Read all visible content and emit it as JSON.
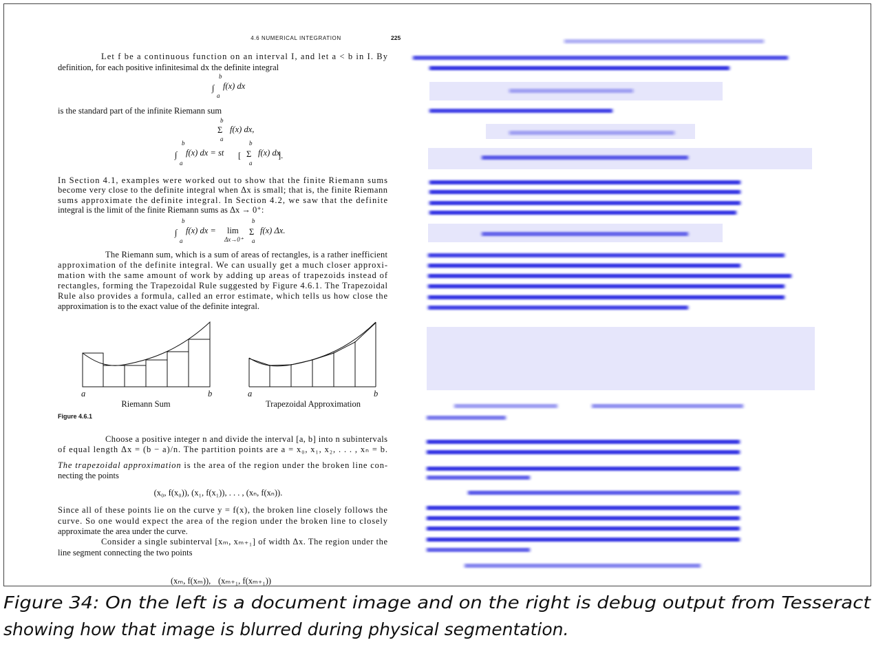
{
  "header": {
    "running_title": "4.6 NUMERICAL INTEGRATION",
    "page_number": "225"
  },
  "paragraphs": [
    {
      "lines": [
        "Let f be a continuous function on an interval I, and let a < b in I. By",
        "definition, for each positive infinitesimal dx the definite integral"
      ]
    },
    {
      "lines": [
        "is the standard part of the infinite Riemann sum"
      ]
    },
    {
      "lines": [
        "In Section 4.1, examples were worked out to show that the finite Riemann sums",
        "become very close to the definite integral when Δx is small; that is, the finite Riemann",
        "sums approximate the definite integral. In Section 4.2, we saw that the definite",
        "integral is the limit of the finite Riemann sums as Δx → 0⁺:"
      ]
    },
    {
      "lines": [
        "The Riemann sum, which is a sum of areas of rectangles, is a rather inefficient",
        "approximation of the definite integral. We can usually get a much closer approxi-",
        "mation with the same amount of work by adding up areas of trapezoids instead of",
        "rectangles, forming the Trapezoidal Rule suggested by Figure 4.6.1. The Trapezoidal",
        "Rule also provides a formula, called an error estimate, which tells us how close the",
        "approximation is to the exact value of the definite integral."
      ]
    },
    {
      "lines": [
        "Choose a positive integer n and divide the interval [a, b] into n subintervals",
        "of equal length Δx = (b − a)/n. The partition points are a = x₀, x₁, x₂, . . . , xₙ = b."
      ]
    },
    {
      "emphasis": "The trapezoidal approximation",
      "lines": [
        " is the area of the region under the broken line con-",
        "necting the points"
      ]
    },
    {
      "lines": [
        "Since all of these points lie on the curve y = f(x), the broken line closely follows the",
        "curve. So one would expect the area of the region under the broken line to closely",
        "approximate the area under the curve."
      ]
    },
    {
      "lines": [
        "Consider a single subinterval [xₘ, xₘ₊₁] of width Δx. The region under the",
        "line segment connecting the two points"
      ]
    }
  ],
  "equations": [
    [
      "∫",
      "b",
      "a",
      "f(x) dx"
    ],
    [
      "Σ",
      "b",
      "a",
      "f(x) dx,"
    ],
    [
      "∫",
      "b",
      "a",
      "f(x) dx = st",
      "[",
      "Σ",
      "b",
      "a",
      "f(x) dx",
      "]."
    ],
    [
      "∫",
      "b",
      "a",
      "f(x) dx =",
      "lim",
      "Δx→0⁺",
      "Σ",
      "b",
      "a",
      "f(x) Δx."
    ],
    [
      "(x₀, f(x₀)), (x₁, f(x₁)), . . . , (xₙ, f(xₙ))."
    ],
    [
      "(xₘ, f(xₘ)),",
      "(xₘ₊₁, f(xₘ₊₁))"
    ]
  ],
  "figure": {
    "panels": [
      {
        "title": "Riemann Sum",
        "left": "a",
        "right": "b"
      },
      {
        "title": "Trapezoidal Approximation",
        "left": "a",
        "right": "b"
      }
    ],
    "label": "Figure 4.6.1"
  },
  "caption": {
    "lines": [
      "Figure 34: On the left is a document image and on the right is debug output from Tesseract",
      "showing how that image is blurred during physical segmentation."
    ]
  }
}
